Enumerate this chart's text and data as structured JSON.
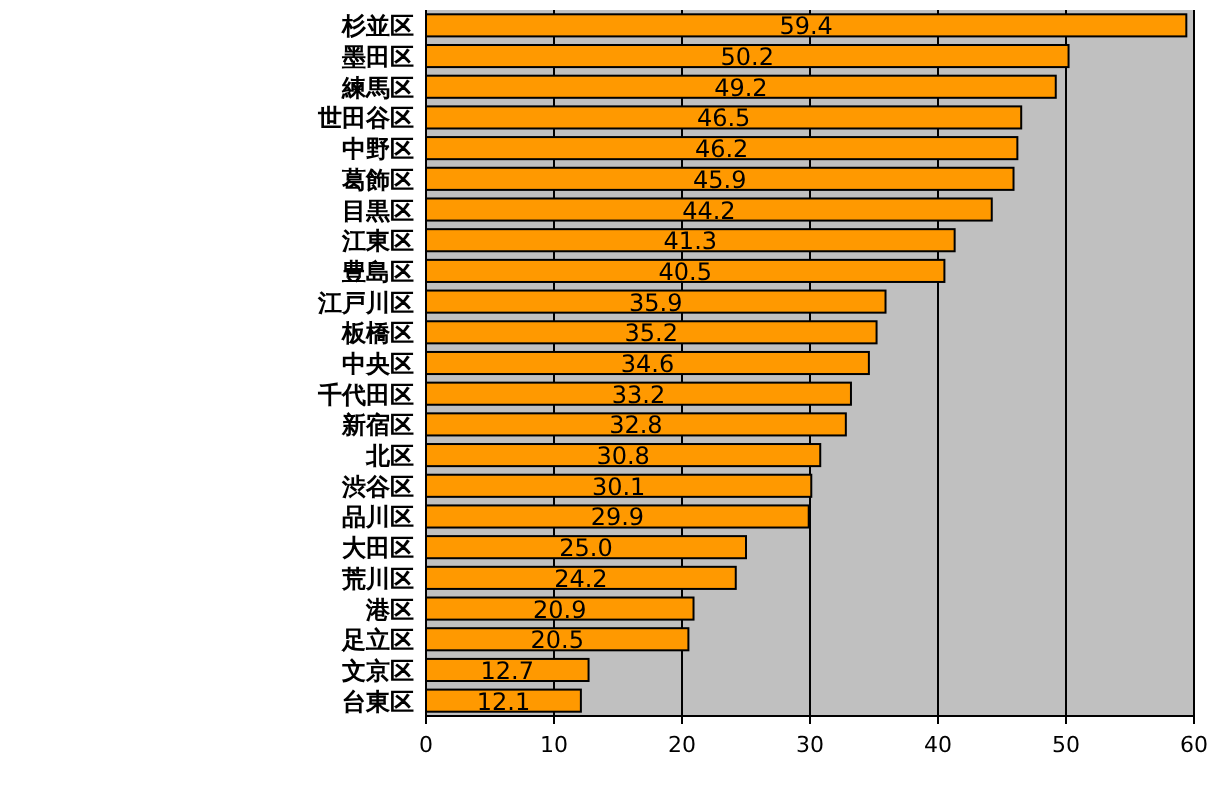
{
  "chart_data": {
    "type": "bar",
    "orientation": "horizontal",
    "categories": [
      "杉並区",
      "墨田区",
      "練馬区",
      "世田谷区",
      "中野区",
      "葛飾区",
      "目黒区",
      "江東区",
      "豊島区",
      "江戸川区",
      "板橋区",
      "中央区",
      "千代田区",
      "新宿区",
      "北区",
      "渋谷区",
      "品川区",
      "大田区",
      "荒川区",
      "港区",
      "足立区",
      "文京区",
      "台東区"
    ],
    "values": [
      59.4,
      50.2,
      49.2,
      46.5,
      46.2,
      45.9,
      44.2,
      41.3,
      40.5,
      35.9,
      35.2,
      34.6,
      33.2,
      32.8,
      30.8,
      30.1,
      29.9,
      25.0,
      24.2,
      20.9,
      20.5,
      12.7,
      12.1
    ],
    "value_labels": [
      "59.4",
      "50.2",
      "49.2",
      "46.5",
      "46.2",
      "45.9",
      "44.2",
      "41.3",
      "40.5",
      "35.9",
      "35.2",
      "34.6",
      "33.2",
      "32.8",
      "30.8",
      "30.1",
      "29.9",
      "25.0",
      "24.2",
      "20.9",
      "20.5",
      "12.7",
      "12.1"
    ],
    "color": "#ff9900",
    "xlim": [
      0,
      60
    ],
    "xticks": [
      0,
      10,
      20,
      30,
      40,
      50,
      60
    ],
    "grid": "x"
  }
}
